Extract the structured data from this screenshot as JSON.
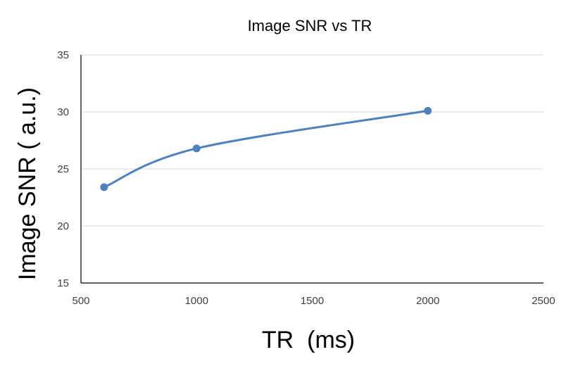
{
  "chart_data": {
    "type": "scatter",
    "title": "Image SNR vs TR",
    "xlabel": "TR  (ms)",
    "ylabel": "Image SNR ( a.u.)",
    "xlim": [
      500,
      2500
    ],
    "ylim": [
      15,
      35
    ],
    "xticks": [
      "500",
      "1000",
      "1500",
      "2000",
      "2500"
    ],
    "yticks": [
      "15",
      "20",
      "25",
      "30",
      "35"
    ],
    "grid": "horizontal",
    "line": "smoothed",
    "series": [
      {
        "x": [
          600,
          1000,
          2000
        ],
        "y": [
          23.4,
          26.8,
          30.1
        ],
        "color": "#4f81bd"
      }
    ]
  }
}
